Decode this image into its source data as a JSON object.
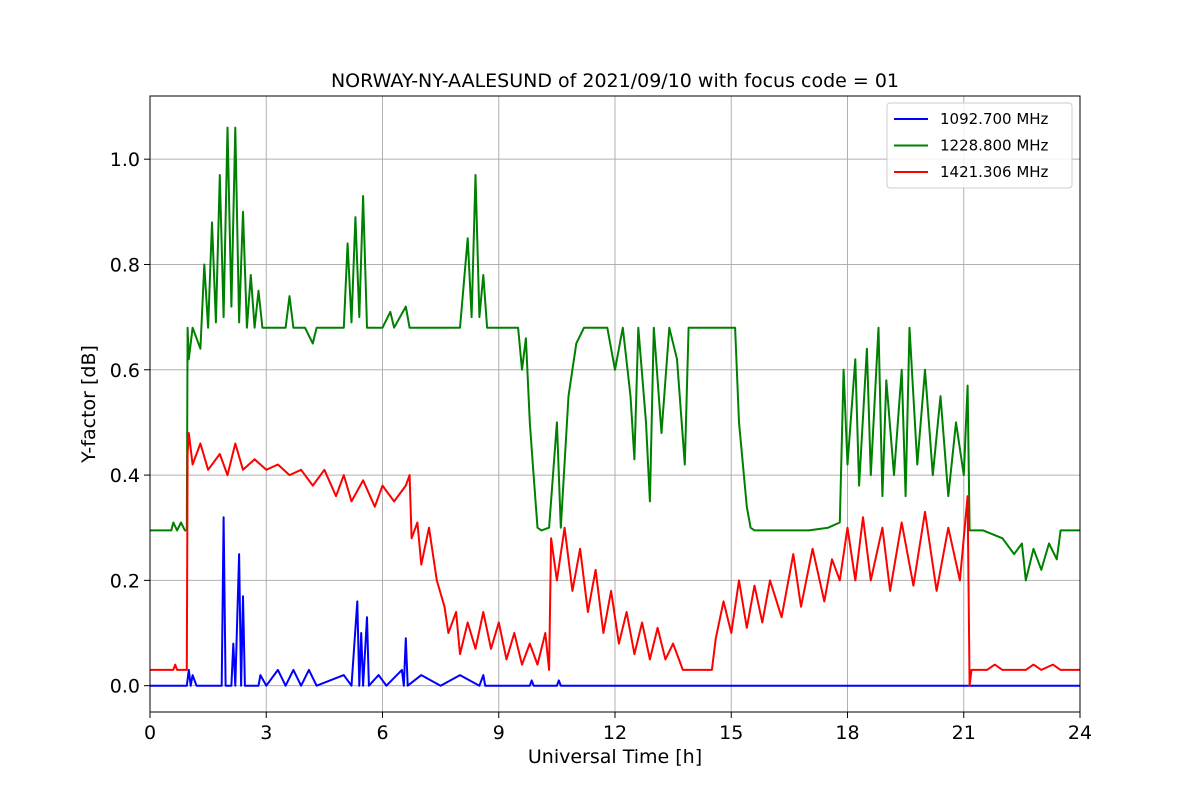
{
  "chart_data": {
    "type": "line",
    "title": "NORWAY-NY-AALESUND of 2021/09/10 with focus code = 01",
    "xlabel": "Universal Time [h]",
    "ylabel": "Y-factor [dB]",
    "xlim": [
      0,
      24
    ],
    "ylim": [
      -0.05,
      1.12
    ],
    "xticks": [
      0,
      3,
      6,
      9,
      12,
      15,
      18,
      21,
      24
    ],
    "xtick_labels": [
      "0",
      "3",
      "6",
      "9",
      "12",
      "15",
      "18",
      "21",
      "24"
    ],
    "yticks": [
      0.0,
      0.2,
      0.4,
      0.6,
      0.8,
      1.0
    ],
    "ytick_labels": [
      "0.0",
      "0.2",
      "0.4",
      "0.6",
      "0.8",
      "1.0"
    ],
    "grid": true,
    "legend_position": "top-right",
    "series": [
      {
        "name": "1092.700 MHz",
        "color": "#0000ff",
        "points": [
          [
            0.0,
            0.0
          ],
          [
            0.95,
            0.0
          ],
          [
            1.0,
            0.03
          ],
          [
            1.05,
            0.0
          ],
          [
            1.1,
            0.02
          ],
          [
            1.2,
            0.0
          ],
          [
            1.85,
            0.0
          ],
          [
            1.9,
            0.32
          ],
          [
            1.95,
            0.0
          ],
          [
            2.1,
            0.0
          ],
          [
            2.15,
            0.08
          ],
          [
            2.2,
            0.0
          ],
          [
            2.3,
            0.25
          ],
          [
            2.35,
            0.0
          ],
          [
            2.4,
            0.17
          ],
          [
            2.45,
            0.0
          ],
          [
            2.8,
            0.0
          ],
          [
            2.85,
            0.02
          ],
          [
            3.0,
            0.0
          ],
          [
            3.3,
            0.03
          ],
          [
            3.5,
            0.0
          ],
          [
            3.7,
            0.03
          ],
          [
            3.9,
            0.0
          ],
          [
            4.1,
            0.03
          ],
          [
            4.3,
            0.0
          ],
          [
            5.0,
            0.02
          ],
          [
            5.2,
            0.0
          ],
          [
            5.35,
            0.16
          ],
          [
            5.4,
            0.0
          ],
          [
            5.45,
            0.1
          ],
          [
            5.5,
            0.0
          ],
          [
            5.6,
            0.13
          ],
          [
            5.65,
            0.0
          ],
          [
            5.9,
            0.02
          ],
          [
            6.1,
            0.0
          ],
          [
            6.5,
            0.03
          ],
          [
            6.55,
            0.0
          ],
          [
            6.6,
            0.09
          ],
          [
            6.65,
            0.0
          ],
          [
            7.0,
            0.02
          ],
          [
            7.5,
            0.0
          ],
          [
            8.0,
            0.02
          ],
          [
            8.5,
            0.0
          ],
          [
            8.6,
            0.02
          ],
          [
            8.65,
            0.0
          ],
          [
            9.8,
            0.0
          ],
          [
            9.85,
            0.01
          ],
          [
            9.9,
            0.0
          ],
          [
            10.5,
            0.0
          ],
          [
            10.55,
            0.01
          ],
          [
            10.6,
            0.0
          ],
          [
            24.0,
            0.0
          ]
        ]
      },
      {
        "name": "1228.800 MHz",
        "color": "#008000",
        "points": [
          [
            0.0,
            0.295
          ],
          [
            0.55,
            0.295
          ],
          [
            0.6,
            0.31
          ],
          [
            0.7,
            0.295
          ],
          [
            0.8,
            0.31
          ],
          [
            0.9,
            0.295
          ],
          [
            0.95,
            0.295
          ],
          [
            0.97,
            0.68
          ],
          [
            1.0,
            0.62
          ],
          [
            1.1,
            0.68
          ],
          [
            1.3,
            0.64
          ],
          [
            1.4,
            0.8
          ],
          [
            1.5,
            0.68
          ],
          [
            1.6,
            0.88
          ],
          [
            1.7,
            0.69
          ],
          [
            1.8,
            0.97
          ],
          [
            1.9,
            0.7
          ],
          [
            2.0,
            1.06
          ],
          [
            2.1,
            0.72
          ],
          [
            2.2,
            1.06
          ],
          [
            2.3,
            0.69
          ],
          [
            2.4,
            0.9
          ],
          [
            2.5,
            0.68
          ],
          [
            2.6,
            0.78
          ],
          [
            2.7,
            0.68
          ],
          [
            2.8,
            0.75
          ],
          [
            2.9,
            0.68
          ],
          [
            3.0,
            0.68
          ],
          [
            3.5,
            0.68
          ],
          [
            3.6,
            0.74
          ],
          [
            3.7,
            0.68
          ],
          [
            4.0,
            0.68
          ],
          [
            4.2,
            0.65
          ],
          [
            4.3,
            0.68
          ],
          [
            5.0,
            0.68
          ],
          [
            5.1,
            0.84
          ],
          [
            5.2,
            0.69
          ],
          [
            5.3,
            0.89
          ],
          [
            5.4,
            0.7
          ],
          [
            5.5,
            0.93
          ],
          [
            5.6,
            0.68
          ],
          [
            6.0,
            0.68
          ],
          [
            6.2,
            0.71
          ],
          [
            6.3,
            0.68
          ],
          [
            6.6,
            0.72
          ],
          [
            6.7,
            0.68
          ],
          [
            8.0,
            0.68
          ],
          [
            8.2,
            0.85
          ],
          [
            8.3,
            0.7
          ],
          [
            8.4,
            0.97
          ],
          [
            8.5,
            0.7
          ],
          [
            8.6,
            0.78
          ],
          [
            8.7,
            0.68
          ],
          [
            9.0,
            0.68
          ],
          [
            9.5,
            0.68
          ],
          [
            9.6,
            0.6
          ],
          [
            9.7,
            0.66
          ],
          [
            9.8,
            0.5
          ],
          [
            9.9,
            0.4
          ],
          [
            10.0,
            0.3
          ],
          [
            10.1,
            0.295
          ],
          [
            10.3,
            0.3
          ],
          [
            10.4,
            0.4
          ],
          [
            10.5,
            0.5
          ],
          [
            10.6,
            0.3
          ],
          [
            10.8,
            0.55
          ],
          [
            11.0,
            0.65
          ],
          [
            11.2,
            0.68
          ],
          [
            11.5,
            0.68
          ],
          [
            11.8,
            0.68
          ],
          [
            12.0,
            0.6
          ],
          [
            12.2,
            0.68
          ],
          [
            12.4,
            0.55
          ],
          [
            12.5,
            0.43
          ],
          [
            12.6,
            0.68
          ],
          [
            12.8,
            0.5
          ],
          [
            12.9,
            0.35
          ],
          [
            13.0,
            0.68
          ],
          [
            13.2,
            0.48
          ],
          [
            13.4,
            0.68
          ],
          [
            13.6,
            0.62
          ],
          [
            13.8,
            0.42
          ],
          [
            13.9,
            0.68
          ],
          [
            14.2,
            0.68
          ],
          [
            14.5,
            0.68
          ],
          [
            14.8,
            0.68
          ],
          [
            15.0,
            0.68
          ],
          [
            15.1,
            0.68
          ],
          [
            15.2,
            0.5
          ],
          [
            15.3,
            0.42
          ],
          [
            15.4,
            0.34
          ],
          [
            15.5,
            0.3
          ],
          [
            15.6,
            0.295
          ],
          [
            16.0,
            0.295
          ],
          [
            17.0,
            0.295
          ],
          [
            17.5,
            0.3
          ],
          [
            17.8,
            0.31
          ],
          [
            17.9,
            0.6
          ],
          [
            18.0,
            0.42
          ],
          [
            18.2,
            0.62
          ],
          [
            18.3,
            0.38
          ],
          [
            18.5,
            0.64
          ],
          [
            18.6,
            0.4
          ],
          [
            18.8,
            0.68
          ],
          [
            18.9,
            0.36
          ],
          [
            19.0,
            0.58
          ],
          [
            19.2,
            0.4
          ],
          [
            19.4,
            0.6
          ],
          [
            19.5,
            0.36
          ],
          [
            19.6,
            0.68
          ],
          [
            19.8,
            0.42
          ],
          [
            20.0,
            0.6
          ],
          [
            20.2,
            0.4
          ],
          [
            20.4,
            0.55
          ],
          [
            20.6,
            0.36
          ],
          [
            20.8,
            0.5
          ],
          [
            21.0,
            0.4
          ],
          [
            21.1,
            0.57
          ],
          [
            21.15,
            0.295
          ],
          [
            21.5,
            0.295
          ],
          [
            22.0,
            0.28
          ],
          [
            22.3,
            0.25
          ],
          [
            22.5,
            0.27
          ],
          [
            22.6,
            0.2
          ],
          [
            22.8,
            0.26
          ],
          [
            23.0,
            0.22
          ],
          [
            23.2,
            0.27
          ],
          [
            23.4,
            0.24
          ],
          [
            23.5,
            0.295
          ],
          [
            24.0,
            0.295
          ]
        ]
      },
      {
        "name": "1421.306 MHz",
        "color": "#ff0000",
        "points": [
          [
            0.0,
            0.03
          ],
          [
            0.6,
            0.03
          ],
          [
            0.65,
            0.04
          ],
          [
            0.7,
            0.03
          ],
          [
            0.9,
            0.03
          ],
          [
            0.95,
            0.03
          ],
          [
            0.97,
            0.44
          ],
          [
            1.0,
            0.48
          ],
          [
            1.1,
            0.42
          ],
          [
            1.3,
            0.46
          ],
          [
            1.5,
            0.41
          ],
          [
            1.8,
            0.44
          ],
          [
            2.0,
            0.4
          ],
          [
            2.2,
            0.46
          ],
          [
            2.4,
            0.41
          ],
          [
            2.7,
            0.43
          ],
          [
            3.0,
            0.41
          ],
          [
            3.3,
            0.42
          ],
          [
            3.6,
            0.4
          ],
          [
            3.9,
            0.41
          ],
          [
            4.2,
            0.38
          ],
          [
            4.5,
            0.41
          ],
          [
            4.8,
            0.36
          ],
          [
            5.0,
            0.4
          ],
          [
            5.2,
            0.35
          ],
          [
            5.5,
            0.39
          ],
          [
            5.8,
            0.34
          ],
          [
            6.0,
            0.38
          ],
          [
            6.3,
            0.35
          ],
          [
            6.6,
            0.38
          ],
          [
            6.7,
            0.4
          ],
          [
            6.75,
            0.28
          ],
          [
            6.9,
            0.31
          ],
          [
            7.0,
            0.23
          ],
          [
            7.2,
            0.3
          ],
          [
            7.4,
            0.2
          ],
          [
            7.6,
            0.15
          ],
          [
            7.7,
            0.1
          ],
          [
            7.9,
            0.14
          ],
          [
            8.0,
            0.06
          ],
          [
            8.2,
            0.12
          ],
          [
            8.4,
            0.07
          ],
          [
            8.6,
            0.14
          ],
          [
            8.8,
            0.07
          ],
          [
            9.0,
            0.12
          ],
          [
            9.2,
            0.05
          ],
          [
            9.4,
            0.1
          ],
          [
            9.6,
            0.04
          ],
          [
            9.8,
            0.08
          ],
          [
            10.0,
            0.04
          ],
          [
            10.2,
            0.1
          ],
          [
            10.3,
            0.03
          ],
          [
            10.35,
            0.28
          ],
          [
            10.5,
            0.2
          ],
          [
            10.7,
            0.3
          ],
          [
            10.9,
            0.18
          ],
          [
            11.1,
            0.26
          ],
          [
            11.3,
            0.14
          ],
          [
            11.5,
            0.22
          ],
          [
            11.7,
            0.1
          ],
          [
            11.9,
            0.18
          ],
          [
            12.1,
            0.08
          ],
          [
            12.3,
            0.14
          ],
          [
            12.5,
            0.06
          ],
          [
            12.7,
            0.12
          ],
          [
            12.9,
            0.05
          ],
          [
            13.1,
            0.11
          ],
          [
            13.3,
            0.05
          ],
          [
            13.5,
            0.08
          ],
          [
            13.7,
            0.04
          ],
          [
            13.75,
            0.03
          ],
          [
            14.5,
            0.03
          ],
          [
            14.6,
            0.09
          ],
          [
            14.8,
            0.16
          ],
          [
            15.0,
            0.1
          ],
          [
            15.2,
            0.2
          ],
          [
            15.4,
            0.11
          ],
          [
            15.6,
            0.19
          ],
          [
            15.8,
            0.12
          ],
          [
            16.0,
            0.2
          ],
          [
            16.3,
            0.13
          ],
          [
            16.6,
            0.25
          ],
          [
            16.8,
            0.15
          ],
          [
            17.1,
            0.26
          ],
          [
            17.4,
            0.16
          ],
          [
            17.6,
            0.24
          ],
          [
            17.8,
            0.2
          ],
          [
            18.0,
            0.3
          ],
          [
            18.2,
            0.2
          ],
          [
            18.4,
            0.32
          ],
          [
            18.6,
            0.2
          ],
          [
            18.9,
            0.3
          ],
          [
            19.1,
            0.18
          ],
          [
            19.4,
            0.31
          ],
          [
            19.7,
            0.19
          ],
          [
            20.0,
            0.33
          ],
          [
            20.3,
            0.18
          ],
          [
            20.6,
            0.3
          ],
          [
            20.9,
            0.2
          ],
          [
            21.1,
            0.36
          ],
          [
            21.15,
            0.0
          ],
          [
            21.2,
            0.03
          ],
          [
            21.6,
            0.03
          ],
          [
            21.8,
            0.04
          ],
          [
            22.0,
            0.03
          ],
          [
            22.6,
            0.03
          ],
          [
            22.8,
            0.04
          ],
          [
            23.0,
            0.03
          ],
          [
            23.3,
            0.04
          ],
          [
            23.5,
            0.03
          ],
          [
            24.0,
            0.03
          ]
        ]
      }
    ]
  }
}
